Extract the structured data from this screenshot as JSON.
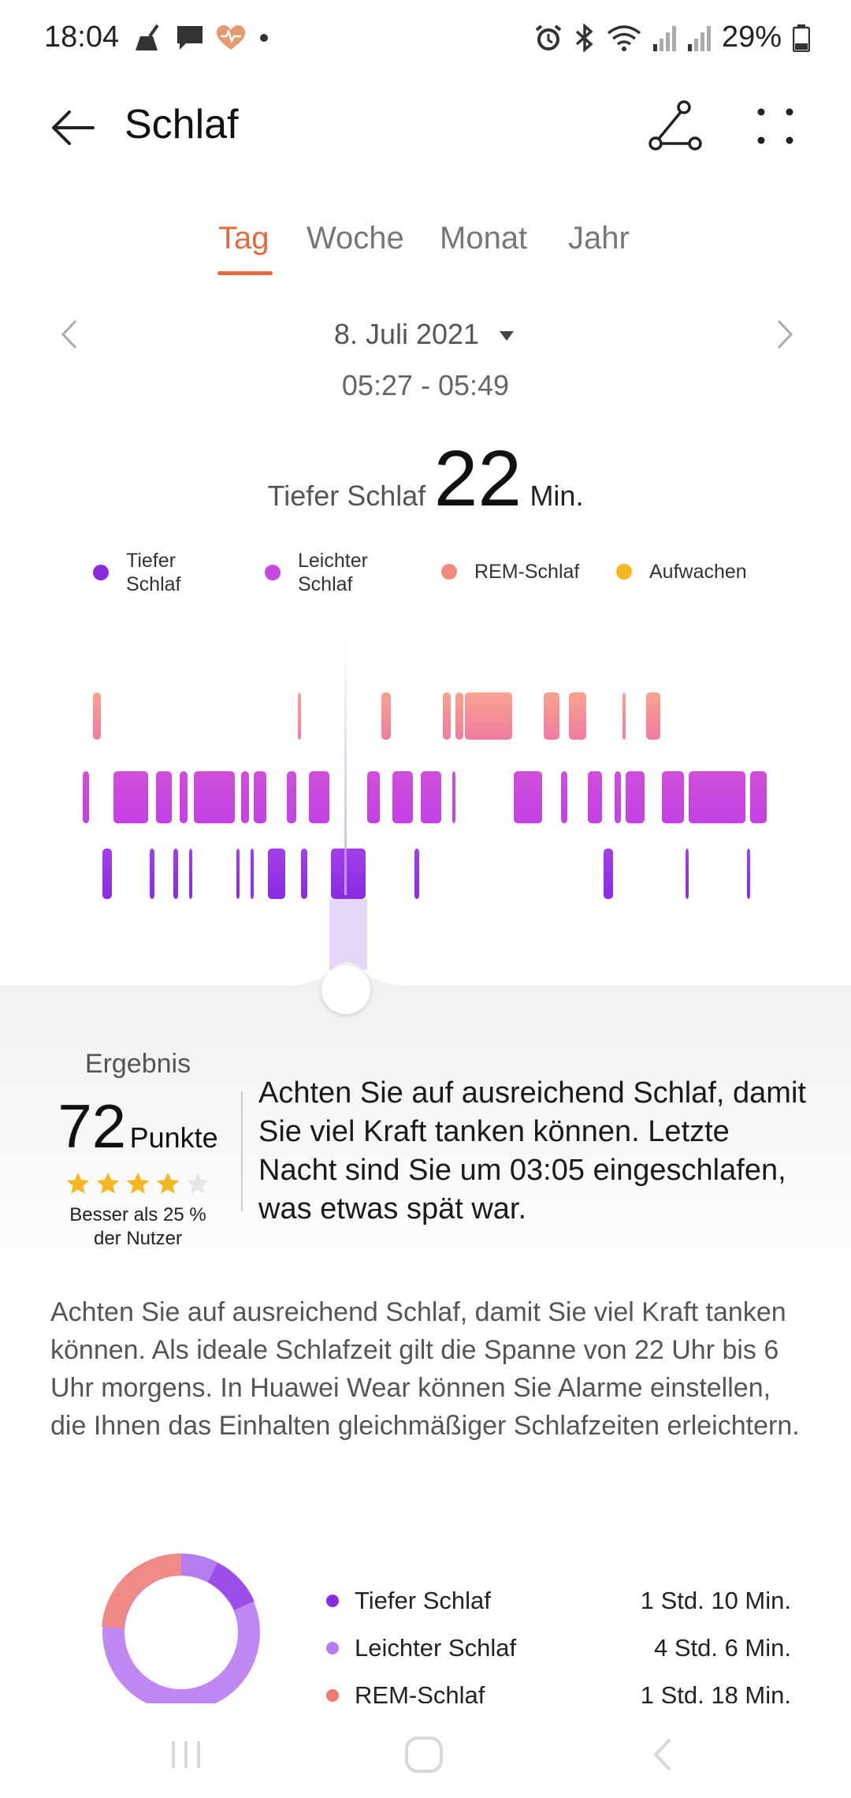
{
  "status_bar": {
    "time": "18:04",
    "battery": "29%",
    "icons_left": [
      "broom-icon",
      "message-icon",
      "heart-rate-icon",
      "dot-icon"
    ],
    "icons_right": [
      "alarm-icon",
      "bluetooth-icon",
      "wifi-icon",
      "signal-icon",
      "signal-icon",
      "battery-icon"
    ]
  },
  "appbar": {
    "title": "Schlaf",
    "back_icon": "back-arrow-icon",
    "share_icon": "share-icon",
    "more_icon": "more-dots-icon"
  },
  "tabs": [
    {
      "label": "Tag",
      "active": true
    },
    {
      "label": "Woche",
      "active": false
    },
    {
      "label": "Monat",
      "active": false
    },
    {
      "label": "Jahr",
      "active": false
    }
  ],
  "date": {
    "label": "8. Juli 2021",
    "range": "05:27 - 05:49"
  },
  "summary": {
    "label": "Tiefer Schlaf",
    "value": "22",
    "unit": "Min."
  },
  "legend": [
    {
      "line1": "Tiefer",
      "line2": "Schlaf",
      "color": "#8a2be2"
    },
    {
      "line1": "Leichter",
      "line2": "Schlaf",
      "color": "#c74ae0"
    },
    {
      "line1": "REM-Schlaf",
      "line2": "",
      "color": "#f28a80"
    },
    {
      "line1": "Aufwachen",
      "line2": "",
      "color": "#f5b820"
    }
  ],
  "colors": {
    "accent": "#e46a3d",
    "deep": "#8a2be2",
    "light": "#c74ae0",
    "rem": "#f28a80",
    "awake": "#f5b820"
  },
  "result": {
    "label": "Ergebnis",
    "score": "72",
    "unit": "Punkte",
    "stars": 4,
    "stars_max": 5,
    "better_line1": "Besser als 25 %",
    "better_line2": "der Nutzer",
    "tip": "Achten Sie auf ausreichend Schlaf, damit Sie viel Kraft tanken können. Letzte Nacht sind Sie um 03:05 eingeschlafen, was etwas spät war."
  },
  "paragraph": "Achten Sie auf ausreichend Schlaf, damit Sie viel Kraft tanken können. Als ideale Schlafzeit gilt die Spanne von 22 Uhr bis 6 Uhr morgens. In Huawei Wear können Sie Alarme einstellen, die Ihnen das Einhalten gleichmäßiger Schlafzeiten erleichtern.",
  "stats": [
    {
      "name": "Tiefer Schlaf",
      "value": "1 Std. 10 Min.",
      "color": "#8a2be2"
    },
    {
      "name": "Leichter Schlaf",
      "value": "4 Std. 6 Min.",
      "color": "#b57cf0"
    },
    {
      "name": "REM-Schlaf",
      "value": "1 Std. 18 Min.",
      "color": "#f07a70"
    }
  ]
}
